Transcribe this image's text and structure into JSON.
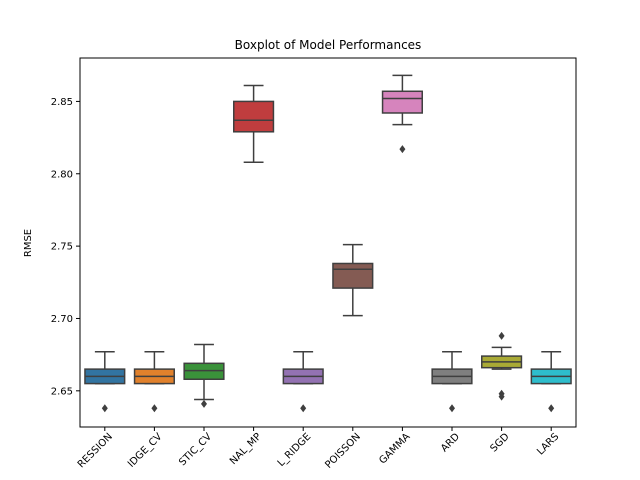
{
  "chart_data": {
    "type": "box",
    "title": "Boxplot of Model Performances",
    "xlabel": "",
    "ylabel": "RMSE",
    "ylim": [
      2.625,
      2.88
    ],
    "yticks": [
      2.65,
      2.7,
      2.75,
      2.8,
      2.85
    ],
    "ytick_labels": [
      "2.65",
      "2.70",
      "2.75",
      "2.80",
      "2.85"
    ],
    "grid": false,
    "categories": [
      "RESSION",
      "IDGE_CV",
      "STIC_CV",
      "NAL_MP",
      "L_RIDGE",
      "POISSON",
      "GAMMA",
      "ARD",
      "SGD",
      "LARS"
    ],
    "boxes": [
      {
        "category": "RESSION",
        "color": "#3274a1",
        "whislo": 2.655,
        "q1": 2.655,
        "med": 2.66,
        "q3": 2.665,
        "whishi": 2.677,
        "fliers": [
          2.638
        ]
      },
      {
        "category": "IDGE_CV",
        "color": "#e1812c",
        "whislo": 2.655,
        "q1": 2.655,
        "med": 2.66,
        "q3": 2.665,
        "whishi": 2.677,
        "fliers": [
          2.638
        ]
      },
      {
        "category": "STIC_CV",
        "color": "#3a923a",
        "whislo": 2.644,
        "q1": 2.658,
        "med": 2.664,
        "q3": 2.669,
        "whishi": 2.682,
        "fliers": [
          2.641
        ]
      },
      {
        "category": "NAL_MP",
        "color": "#c03d3e",
        "whislo": 2.808,
        "q1": 2.829,
        "med": 2.837,
        "q3": 2.85,
        "whishi": 2.861,
        "fliers": []
      },
      {
        "category": "L_RIDGE",
        "color": "#9372b2",
        "whislo": 2.655,
        "q1": 2.655,
        "med": 2.66,
        "q3": 2.665,
        "whishi": 2.677,
        "fliers": [
          2.638
        ]
      },
      {
        "category": "POISSON",
        "color": "#845b53",
        "whislo": 2.702,
        "q1": 2.721,
        "med": 2.734,
        "q3": 2.738,
        "whishi": 2.751,
        "fliers": []
      },
      {
        "category": "GAMMA",
        "color": "#d684bd",
        "whislo": 2.834,
        "q1": 2.842,
        "med": 2.852,
        "q3": 2.857,
        "whishi": 2.868,
        "fliers": [
          2.817
        ]
      },
      {
        "category": "ARD",
        "color": "#7f7f7f",
        "whislo": 2.655,
        "q1": 2.655,
        "med": 2.66,
        "q3": 2.665,
        "whishi": 2.677,
        "fliers": [
          2.638
        ]
      },
      {
        "category": "SGD",
        "color": "#a9aa35",
        "whislo": 2.665,
        "q1": 2.666,
        "med": 2.67,
        "q3": 2.674,
        "whishi": 2.68,
        "fliers": [
          2.688,
          2.648,
          2.646
        ]
      },
      {
        "category": "LARS",
        "color": "#2ebdcc",
        "whislo": 2.655,
        "q1": 2.655,
        "med": 2.66,
        "q3": 2.665,
        "whishi": 2.677,
        "fliers": [
          2.638
        ]
      }
    ]
  }
}
